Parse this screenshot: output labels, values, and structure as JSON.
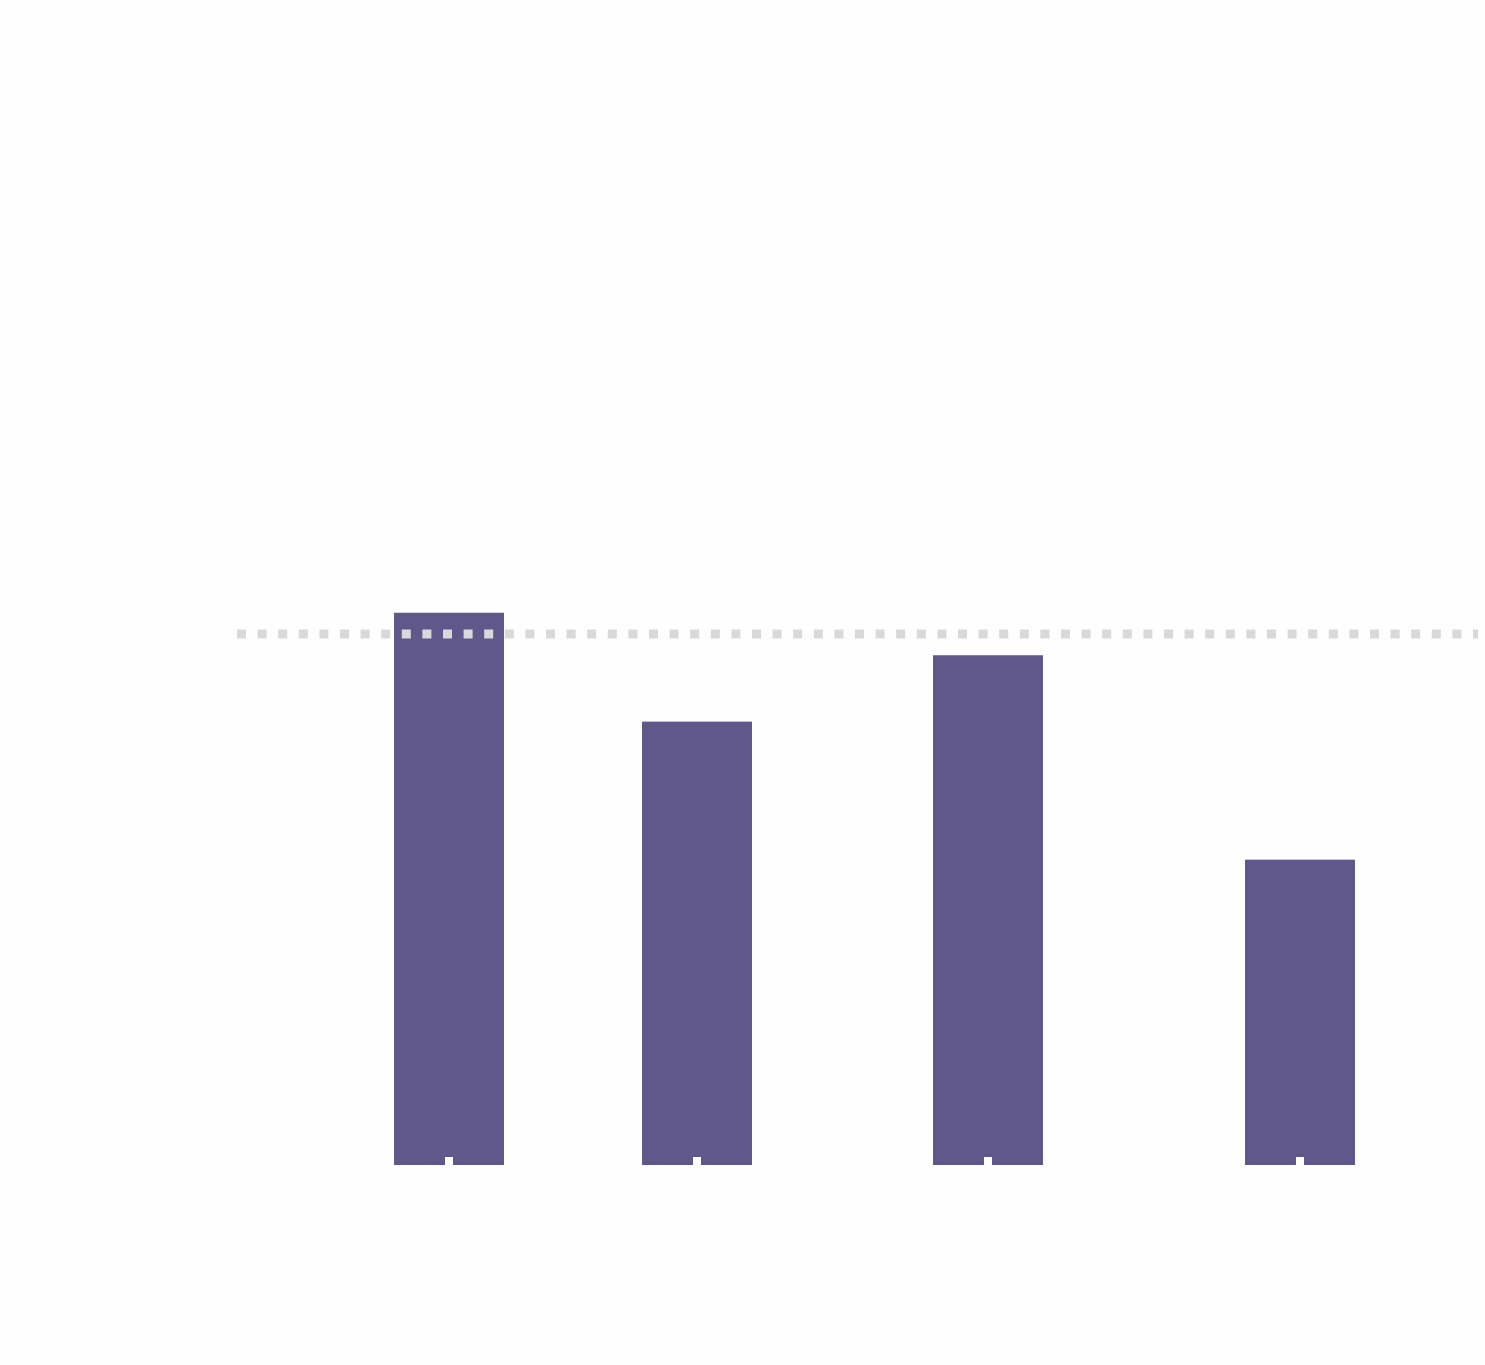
{
  "chart_data": {
    "type": "bar",
    "title": "",
    "xlabel": "",
    "ylabel": "",
    "categories": [
      "",
      "",
      "",
      ""
    ],
    "values": [
      1.04,
      0.835,
      0.96,
      0.575
    ],
    "ylim": [
      0,
      2.5
    ],
    "reference_line": {
      "value": 1.0,
      "style": "dotted",
      "color": "#d9d9d9"
    },
    "grid": false,
    "legend": "none",
    "colors": {
      "bar": "#60588b",
      "tick": "#ffffff",
      "background": "#fefefe"
    }
  }
}
